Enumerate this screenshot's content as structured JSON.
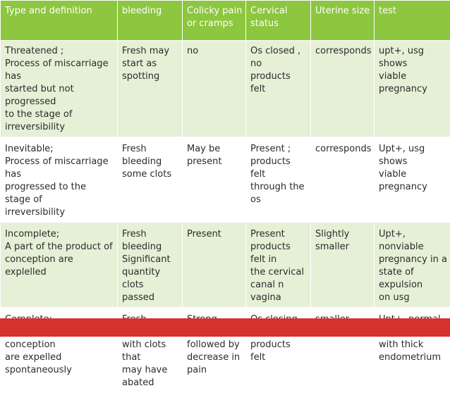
{
  "headers": {
    "type": "Type and definition",
    "bleeding": "bleeding",
    "colicky": "Colicky pain\nor cramps",
    "cervical": "Cervical status",
    "uterine": "Uterine size",
    "test": "test"
  },
  "rows": [
    {
      "type": "Threatened ;\nProcess of miscarriage has\nstarted but not progressed\nto the stage of irreversibility",
      "bleeding": "Fresh may\nstart as\nspotting",
      "colicky": "no",
      "cervical": "Os closed , no\nproducts felt",
      "uterine": "corresponds",
      "test": "upt+, usg shows\nviable pregnancy"
    },
    {
      "type": "Inevitable;\nProcess of miscarriage has\nprogressed to the stage of\nirreversibility",
      "bleeding": "Fresh bleeding\nsome clots",
      "colicky": "May be\npresent",
      "cervical": "Present ;\nproducts felt\nthrough the os",
      "uterine": "corresponds",
      "test": "Upt+, usg shows\nviable pregnancy"
    },
    {
      "type": "Incomplete;\nA part of the product of\nconception are explelled",
      "bleeding": "Fresh bleeding\nSignificant\nquantity clots\npassed",
      "colicky": "Present",
      "cervical": "Present\nproducts felt in\nthe cervical\ncanal n vagina",
      "uterine": "Slightly\nsmaller",
      "test": "Upt+, nonviable\npregnancy in a\nstate of expulsion\non usg"
    },
    {
      "type": "Complete;\nAll products of conception\nare expelled spontaneously",
      "bleeding": "Fresh bleeding\nwith clots that\nmay have\nabated",
      "colicky": "Strong cramps\nfollowed by\ndecrease in\npain",
      "cervical": "Os closing\ndown - no\nproducts felt",
      "uterine": "smaller",
      "test": "Upt+, normal usg\nwith thick\nendometrium"
    }
  ],
  "colors": {
    "header_bg": "#8dc63f",
    "row_light_bg": "#e6f0d6",
    "row_white_bg": "#ffffff",
    "accent_bar": "#d6312f"
  }
}
